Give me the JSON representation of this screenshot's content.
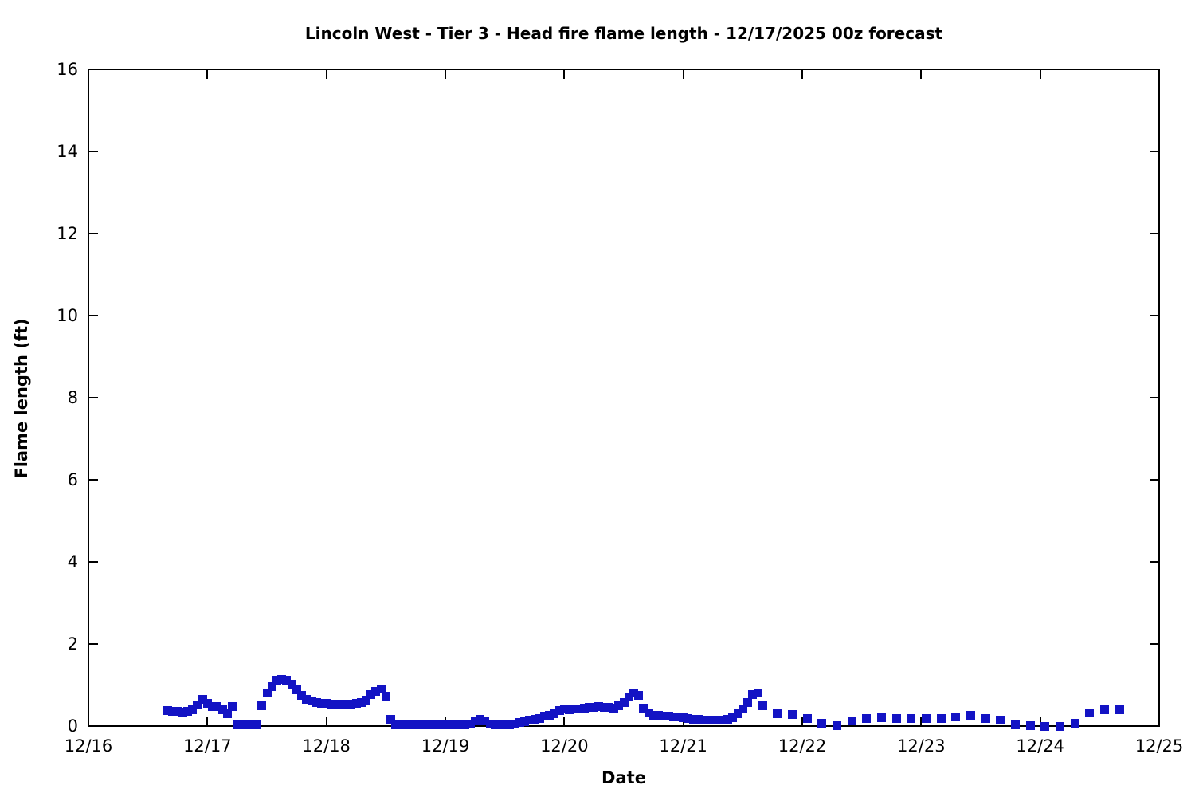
{
  "chart": {
    "title": "Lincoln West - Tier 3 - Head fire flame length - 12/17/2025 00z forecast",
    "xlabel": "Date",
    "ylabel": "Flame length (ft)"
  },
  "chart_data": {
    "type": "scatter",
    "marker": "square",
    "marker_size_px": 11,
    "marker_color": "#1313c4",
    "axis_color": "#000000",
    "background_color": "#ffffff",
    "title": "Lincoln West - Tier 3 - Head fire flame length - 12/17/2025 00z forecast",
    "xlabel": "Date",
    "ylabel": "Flame length (ft)",
    "x_tick_labels": [
      "12/16",
      "12/17",
      "12/18",
      "12/19",
      "12/20",
      "12/21",
      "12/22",
      "12/23",
      "12/24",
      "12/25"
    ],
    "x_range_days": [
      0,
      9
    ],
    "y_ticks": [
      0,
      2,
      4,
      6,
      8,
      10,
      12,
      14,
      16
    ],
    "ylim": [
      0,
      16
    ],
    "grid": false,
    "legend": "none",
    "ticks_style": "inward-mirrored",
    "x_unit": "hours since 12/16 16:00 local (forecast start, hourly to h120 then 3-hourly to h192)",
    "start_hour_local": 16,
    "y_unit": "ft",
    "points": [
      [
        0,
        0.38
      ],
      [
        1,
        0.36
      ],
      [
        2,
        0.35
      ],
      [
        3,
        0.34
      ],
      [
        4,
        0.35
      ],
      [
        5,
        0.4
      ],
      [
        6,
        0.52
      ],
      [
        7,
        0.65
      ],
      [
        8,
        0.56
      ],
      [
        9,
        0.48
      ],
      [
        10,
        0.48
      ],
      [
        11,
        0.4
      ],
      [
        12,
        0.31
      ],
      [
        13,
        0.47
      ],
      [
        14,
        0.02
      ],
      [
        15,
        0.02
      ],
      [
        16,
        0.02
      ],
      [
        17,
        0.02
      ],
      [
        18,
        0.02
      ],
      [
        19,
        0.5
      ],
      [
        20,
        0.8
      ],
      [
        21,
        0.97
      ],
      [
        22,
        1.12
      ],
      [
        23,
        1.14
      ],
      [
        24,
        1.12
      ],
      [
        25,
        1.02
      ],
      [
        26,
        0.88
      ],
      [
        27,
        0.74
      ],
      [
        28,
        0.66
      ],
      [
        29,
        0.62
      ],
      [
        30,
        0.58
      ],
      [
        31,
        0.56
      ],
      [
        32,
        0.55
      ],
      [
        33,
        0.54
      ],
      [
        34,
        0.53
      ],
      [
        35,
        0.53
      ],
      [
        36,
        0.53
      ],
      [
        37,
        0.54
      ],
      [
        38,
        0.56
      ],
      [
        39,
        0.58
      ],
      [
        40,
        0.64
      ],
      [
        41,
        0.76
      ],
      [
        42,
        0.85
      ],
      [
        43,
        0.91
      ],
      [
        44,
        0.73
      ],
      [
        45,
        0.16
      ],
      [
        46,
        0.03
      ],
      [
        47,
        0.02
      ],
      [
        48,
        0.02
      ],
      [
        49,
        0.02
      ],
      [
        50,
        0.02
      ],
      [
        51,
        0.02
      ],
      [
        52,
        0.02
      ],
      [
        53,
        0.02
      ],
      [
        54,
        0.02
      ],
      [
        55,
        0.02
      ],
      [
        56,
        0.02
      ],
      [
        57,
        0.02
      ],
      [
        58,
        0.02
      ],
      [
        59,
        0.02
      ],
      [
        60,
        0.02
      ],
      [
        61,
        0.04
      ],
      [
        62,
        0.12
      ],
      [
        63,
        0.16
      ],
      [
        64,
        0.13
      ],
      [
        65,
        0.04
      ],
      [
        66,
        0.02
      ],
      [
        67,
        0.02
      ],
      [
        68,
        0.02
      ],
      [
        69,
        0.02
      ],
      [
        70,
        0.04
      ],
      [
        71,
        0.08
      ],
      [
        72,
        0.11
      ],
      [
        73,
        0.14
      ],
      [
        74,
        0.17
      ],
      [
        75,
        0.19
      ],
      [
        76,
        0.24
      ],
      [
        77,
        0.27
      ],
      [
        78,
        0.31
      ],
      [
        79,
        0.37
      ],
      [
        80,
        0.41
      ],
      [
        81,
        0.4
      ],
      [
        82,
        0.42
      ],
      [
        83,
        0.42
      ],
      [
        84,
        0.44
      ],
      [
        85,
        0.45
      ],
      [
        86,
        0.46
      ],
      [
        87,
        0.47
      ],
      [
        88,
        0.46
      ],
      [
        89,
        0.45
      ],
      [
        90,
        0.44
      ],
      [
        91,
        0.5
      ],
      [
        92,
        0.58
      ],
      [
        93,
        0.7
      ],
      [
        94,
        0.8
      ],
      [
        95,
        0.74
      ],
      [
        96,
        0.44
      ],
      [
        97,
        0.32
      ],
      [
        98,
        0.27
      ],
      [
        99,
        0.26
      ],
      [
        100,
        0.25
      ],
      [
        101,
        0.24
      ],
      [
        102,
        0.23
      ],
      [
        103,
        0.22
      ],
      [
        104,
        0.21
      ],
      [
        105,
        0.18
      ],
      [
        106,
        0.17
      ],
      [
        107,
        0.16
      ],
      [
        108,
        0.15
      ],
      [
        109,
        0.14
      ],
      [
        110,
        0.14
      ],
      [
        111,
        0.14
      ],
      [
        112,
        0.15
      ],
      [
        113,
        0.17
      ],
      [
        114,
        0.21
      ],
      [
        115,
        0.3
      ],
      [
        116,
        0.42
      ],
      [
        117,
        0.58
      ],
      [
        118,
        0.76
      ],
      [
        119,
        0.8
      ],
      [
        120,
        0.5
      ],
      [
        123,
        0.3
      ],
      [
        126,
        0.28
      ],
      [
        129,
        0.18
      ],
      [
        132,
        0.06
      ],
      [
        135,
        0.01
      ],
      [
        138,
        0.12
      ],
      [
        141,
        0.18
      ],
      [
        144,
        0.2
      ],
      [
        147,
        0.18
      ],
      [
        150,
        0.18
      ],
      [
        153,
        0.18
      ],
      [
        156,
        0.18
      ],
      [
        159,
        0.22
      ],
      [
        162,
        0.26
      ],
      [
        165,
        0.18
      ],
      [
        168,
        0.15
      ],
      [
        171,
        0.02
      ],
      [
        174,
        0.01
      ],
      [
        177,
        0.0
      ],
      [
        180,
        0.0
      ],
      [
        183,
        0.07
      ],
      [
        186,
        0.33
      ],
      [
        189,
        0.4
      ],
      [
        192,
        0.4
      ]
    ]
  }
}
